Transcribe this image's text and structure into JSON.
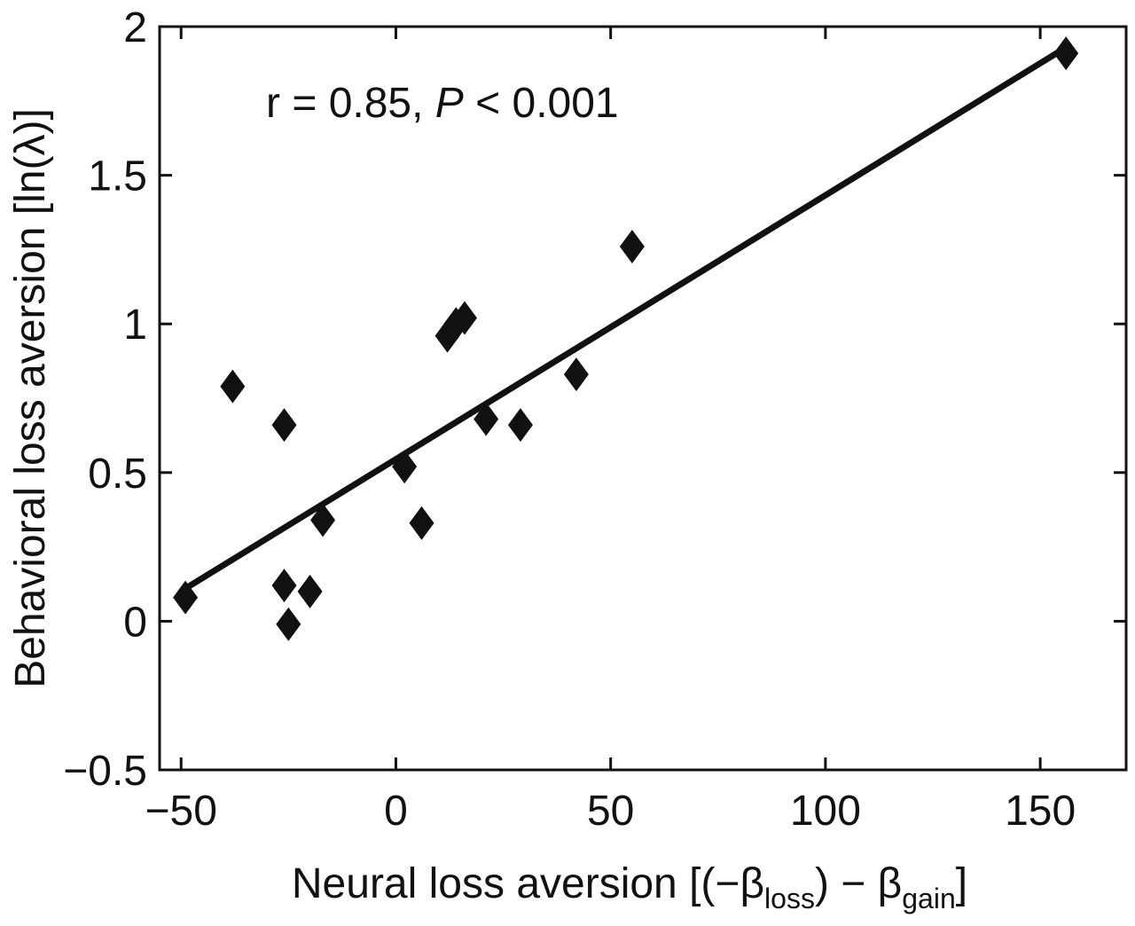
{
  "chart_data": {
    "type": "scatter",
    "xlabel": {
      "prefix": "Neural loss aversion [(−β",
      "sub1": "loss",
      "mid": ") − β",
      "sub2": "gain",
      "suffix": "]"
    },
    "ylabel": "Behavioral loss aversion [ln(λ)]",
    "annotation": {
      "text": "r = 0.85, ",
      "italic": "P",
      "tail": " < 0.001"
    },
    "xlim": [
      -55,
      170
    ],
    "ylim": [
      -0.5,
      2
    ],
    "xticks": [
      "−50",
      "0",
      "50",
      "100",
      "150"
    ],
    "xtick_values": [
      -50,
      0,
      50,
      100,
      150
    ],
    "yticks": [
      "−0.5",
      "0",
      "0.5",
      "1",
      "1.5",
      "2"
    ],
    "ytick_values": [
      -0.5,
      0,
      0.5,
      1,
      1.5,
      2
    ],
    "grid": false,
    "marker": "diamond",
    "color": "#111111",
    "points": [
      {
        "x": -49,
        "y": 0.08
      },
      {
        "x": -38,
        "y": 0.79
      },
      {
        "x": -26,
        "y": 0.66
      },
      {
        "x": -26,
        "y": 0.12
      },
      {
        "x": -25,
        "y": -0.01
      },
      {
        "x": -20,
        "y": 0.1
      },
      {
        "x": -17,
        "y": 0.34
      },
      {
        "x": 2,
        "y": 0.52
      },
      {
        "x": 6,
        "y": 0.33
      },
      {
        "x": 12,
        "y": 0.96
      },
      {
        "x": 14,
        "y": 1.0
      },
      {
        "x": 16,
        "y": 1.02
      },
      {
        "x": 21,
        "y": 0.68
      },
      {
        "x": 29,
        "y": 0.66
      },
      {
        "x": 42,
        "y": 0.83
      },
      {
        "x": 55,
        "y": 1.26
      },
      {
        "x": 156,
        "y": 1.91
      }
    ],
    "fit_line": {
      "x": [
        -49,
        156
      ],
      "y": [
        0.11,
        1.93
      ]
    }
  }
}
